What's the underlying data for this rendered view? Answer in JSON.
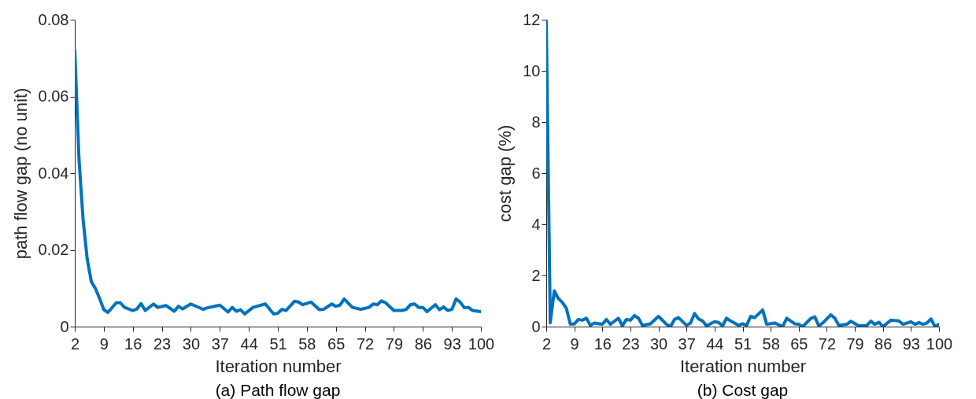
{
  "chart_data": [
    {
      "type": "line",
      "title": "(a) Path flow gap",
      "xlabel": "Iteration number",
      "ylabel": "path flow gap (no unit)",
      "xlim": [
        2,
        100
      ],
      "xticks": [
        2,
        9,
        16,
        23,
        30,
        37,
        44,
        51,
        58,
        65,
        72,
        79,
        86,
        93,
        100
      ],
      "ylim": [
        0,
        0.08
      ],
      "yticks": [
        0,
        0.02,
        0.04,
        0.06,
        0.08
      ],
      "x": [
        2,
        3,
        4,
        5,
        6,
        7,
        8,
        9,
        10,
        12,
        13,
        14,
        16,
        17,
        18,
        19,
        21,
        22,
        24,
        26,
        27,
        28,
        30,
        33,
        34,
        37,
        39,
        40,
        41,
        42,
        43,
        45,
        46,
        48,
        50,
        51,
        52,
        53,
        55,
        56,
        57,
        59,
        61,
        62,
        64,
        65,
        66,
        67,
        69,
        71,
        73,
        74,
        75,
        76,
        77,
        79,
        81,
        82,
        83,
        84,
        85,
        86,
        87,
        89,
        90,
        91,
        92,
        93,
        94,
        95,
        96,
        97,
        98,
        100
      ],
      "series": [
        {
          "color": "#0072bd",
          "values": [
            0.072,
            0.044,
            0.028,
            0.0176,
            0.0117,
            0.0099,
            0.0073,
            0.0044,
            0.0037,
            0.0062,
            0.0062,
            0.005,
            0.0042,
            0.0046,
            0.006,
            0.0042,
            0.0059,
            0.005,
            0.0055,
            0.004,
            0.0053,
            0.0046,
            0.0059,
            0.0045,
            0.0049,
            0.0056,
            0.0038,
            0.005,
            0.004,
            0.0044,
            0.0033,
            0.005,
            0.0053,
            0.0059,
            0.0033,
            0.0035,
            0.0045,
            0.0042,
            0.0066,
            0.0064,
            0.0057,
            0.0064,
            0.0044,
            0.0045,
            0.0059,
            0.0053,
            0.0056,
            0.0072,
            0.005,
            0.0045,
            0.005,
            0.0059,
            0.0057,
            0.0067,
            0.0062,
            0.0042,
            0.0042,
            0.0045,
            0.0057,
            0.0059,
            0.005,
            0.005,
            0.0039,
            0.0057,
            0.0044,
            0.0051,
            0.0042,
            0.0045,
            0.0072,
            0.0064,
            0.0049,
            0.005,
            0.0042,
            0.0039
          ]
        }
      ]
    },
    {
      "type": "line",
      "title": "(b) Cost gap",
      "xlabel": "Iteration number",
      "ylabel": "cost gap (%)",
      "xlim": [
        2,
        100
      ],
      "xticks": [
        2,
        9,
        16,
        23,
        30,
        37,
        44,
        51,
        58,
        65,
        72,
        79,
        86,
        93,
        100
      ],
      "ylim": [
        0,
        12
      ],
      "yticks": [
        0,
        2,
        4,
        6,
        8,
        10,
        12
      ],
      "x": [
        2,
        3,
        4,
        5,
        6,
        7,
        8,
        9,
        10,
        11,
        12,
        13,
        14,
        16,
        17,
        18,
        20,
        21,
        22,
        23,
        24,
        25,
        26,
        28,
        30,
        32,
        33,
        34,
        35,
        37,
        38,
        39,
        40,
        41,
        42,
        44,
        45,
        46,
        47,
        48,
        50,
        51,
        52,
        53,
        54,
        56,
        57,
        59,
        61,
        62,
        64,
        65,
        66,
        68,
        69,
        70,
        71,
        73,
        74,
        75,
        77,
        78,
        80,
        82,
        83,
        84,
        85,
        86,
        88,
        90,
        91,
        93,
        94,
        95,
        96,
        97,
        98,
        99,
        100
      ],
      "series": [
        {
          "color": "#0072bd",
          "values": [
            12,
            0.15,
            1.4,
            1.1,
            0.95,
            0.72,
            0.1,
            0.1,
            0.28,
            0.25,
            0.33,
            0.05,
            0.14,
            0.09,
            0.28,
            0.09,
            0.33,
            0.03,
            0.28,
            0.25,
            0.43,
            0.33,
            0.05,
            0.11,
            0.4,
            0.09,
            0.0,
            0.28,
            0.35,
            0.05,
            0.14,
            0.51,
            0.3,
            0.22,
            0.03,
            0.19,
            0.16,
            0.03,
            0.33,
            0.22,
            0.05,
            0.11,
            0.05,
            0.4,
            0.35,
            0.65,
            0.09,
            0.14,
            0.0,
            0.33,
            0.11,
            0.09,
            0.0,
            0.32,
            0.38,
            0.03,
            0.14,
            0.46,
            0.33,
            0.05,
            0.09,
            0.21,
            0.03,
            0.05,
            0.21,
            0.09,
            0.17,
            0.0,
            0.25,
            0.22,
            0.09,
            0.19,
            0.09,
            0.16,
            0.09,
            0.14,
            0.3,
            0.0,
            0.09
          ]
        }
      ]
    }
  ]
}
